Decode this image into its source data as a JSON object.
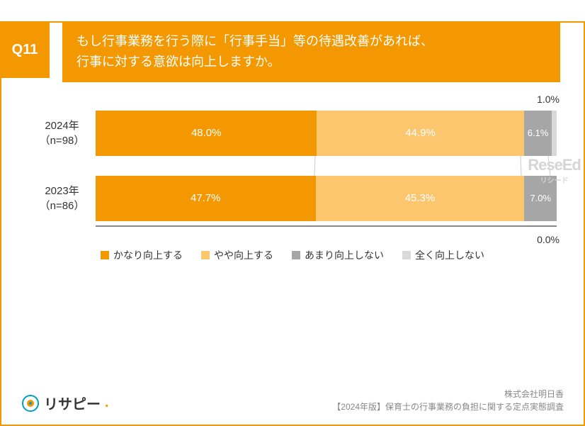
{
  "question": {
    "tag": "Q11",
    "text_line1": "もし行事業務を行う際に「行事手当」等の待遇改善があれば、",
    "text_line2": "行事に対する意欲は向上しますか。"
  },
  "chart": {
    "type": "stacked-bar-horizontal",
    "background_color": "#ffffff",
    "axis_color": "#888888",
    "rows": [
      {
        "label_line1": "2024年",
        "label_line2": "（n=98）",
        "segments": [
          {
            "value": 48.0,
            "label": "48.0%",
            "color": "#f39800"
          },
          {
            "value": 44.9,
            "label": "44.9%",
            "color": "#fcc66e"
          },
          {
            "value": 6.1,
            "label": "6.1%",
            "color": "#a6a6a6"
          },
          {
            "value": 1.0,
            "label": "",
            "color": "#d9d9d9"
          }
        ],
        "outside_label": {
          "text": "1.0%",
          "for_segment": 3
        }
      },
      {
        "label_line1": "2023年",
        "label_line2": "（n=86）",
        "segments": [
          {
            "value": 47.7,
            "label": "47.7%",
            "color": "#f39800"
          },
          {
            "value": 45.3,
            "label": "45.3%",
            "color": "#fcc66e"
          },
          {
            "value": 7.0,
            "label": "7.0%",
            "color": "#a6a6a6"
          },
          {
            "value": 0.0,
            "label": "",
            "color": "#d9d9d9"
          }
        ],
        "outside_label": {
          "text": "0.0%",
          "for_segment": 3
        }
      }
    ],
    "legend": [
      {
        "label": "かなり向上する",
        "color": "#f39800"
      },
      {
        "label": "やや向上する",
        "color": "#fcc66e"
      },
      {
        "label": "あまり向上しない",
        "color": "#a6a6a6"
      },
      {
        "label": "全く向上しない",
        "color": "#d9d9d9"
      }
    ]
  },
  "footer": {
    "brand": "リサピー",
    "credit_line1": "株式会社明日香",
    "credit_line2": "【2024年版】保育士の行事業務の負担に関する定点実態調査"
  },
  "watermark": {
    "text": "ReseEd",
    "sub": "リシード"
  }
}
